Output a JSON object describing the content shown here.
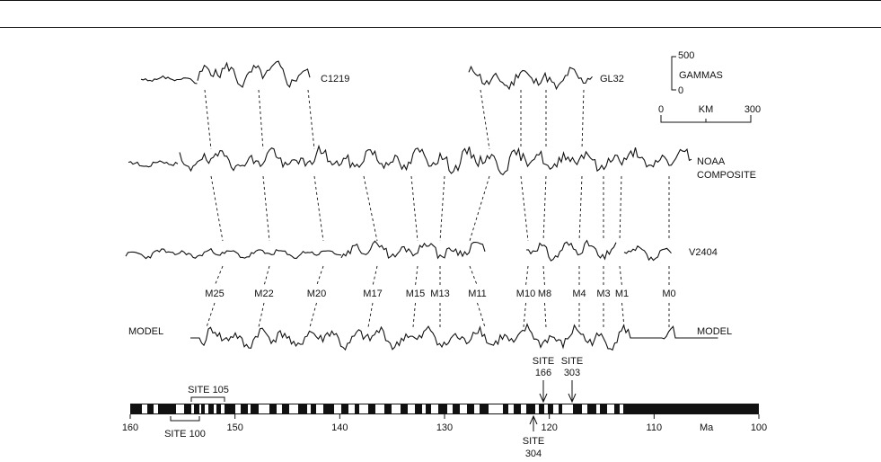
{
  "figure": {
    "profiles": {
      "c1219": "C1219",
      "gl32": "GL32",
      "noaa": [
        "NOAA",
        "COMPOSITE"
      ],
      "v2404": "V2404",
      "model": "MODEL"
    },
    "gamma_scale": {
      "top": 500,
      "unit": "GAMMAS",
      "bottom": 0
    },
    "km_scale": {
      "left": 0,
      "unit": "KM",
      "right": 300
    },
    "anomalies": [
      "M25",
      "M22",
      "M20",
      "M17",
      "M15",
      "M13",
      "M11",
      "M10",
      "M8",
      "M4",
      "M3",
      "M1",
      "M0"
    ],
    "age_axis": {
      "ticks": [
        160,
        150,
        140,
        130,
        120,
        110,
        100
      ],
      "unit": "Ma"
    },
    "sites": {
      "site105": "SITE 105",
      "site100": "SITE 100",
      "site166": [
        "SITE",
        "166"
      ],
      "site303": [
        "SITE",
        "303"
      ],
      "site304": [
        "SITE",
        "304"
      ]
    }
  }
}
